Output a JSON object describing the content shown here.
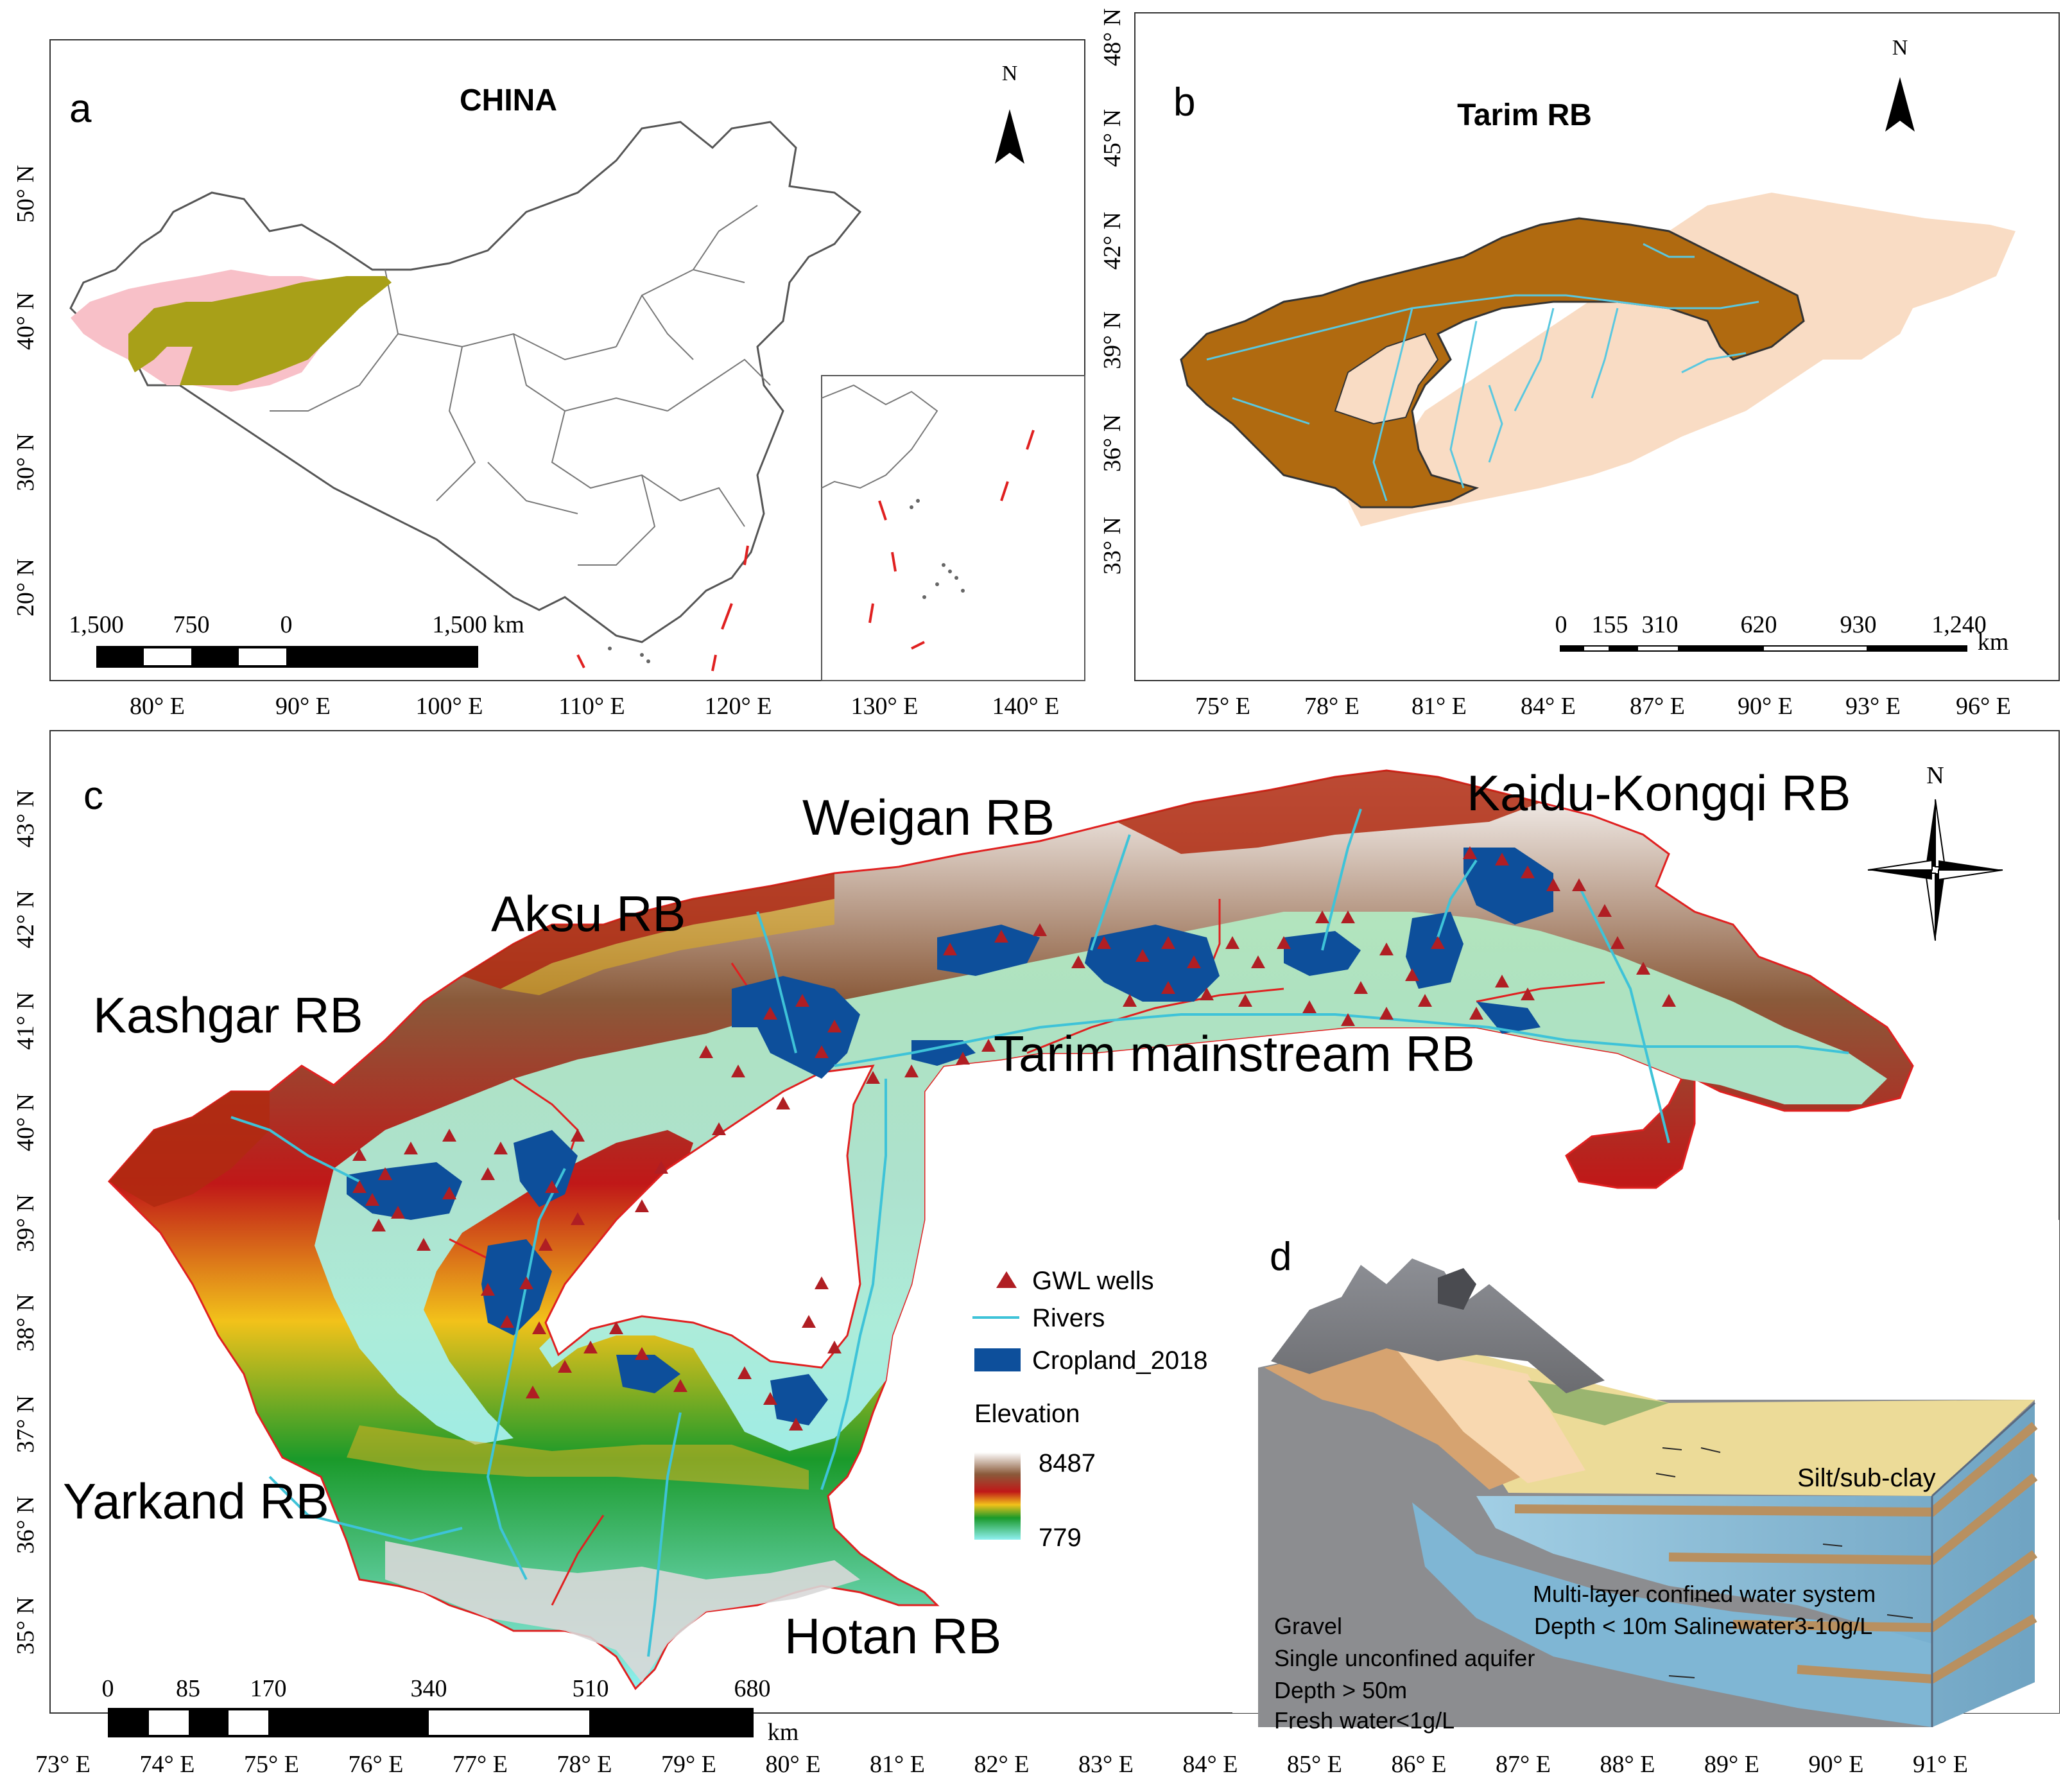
{
  "panel_a": {
    "letter": "a",
    "title": "CHINA",
    "north": "N",
    "lat_labels": [
      "50° N",
      "40° N",
      "30° N",
      "20° N"
    ],
    "lon_labels": [
      "80° E",
      "90° E",
      "100° E",
      "110° E",
      "120° E",
      "130° E",
      "140° E"
    ],
    "scale_labels": [
      "1,500",
      "750",
      "0",
      "1,500 km"
    ]
  },
  "panel_b": {
    "letter": "b",
    "title": "Tarim RB",
    "north": "N",
    "lat_labels": [
      "48° N",
      "45° N",
      "42° N",
      "39° N",
      "36° N",
      "33° N"
    ],
    "lon_labels": [
      "75° E",
      "78° E",
      "81° E",
      "84° E",
      "87° E",
      "90° E",
      "93° E",
      "96° E"
    ],
    "scale_labels": [
      "0",
      "155",
      "310",
      "620",
      "930",
      "1,240",
      "km"
    ]
  },
  "panel_c": {
    "letter": "c",
    "north": "N",
    "basins": [
      "Weigan RB",
      "Kaidu-Kongqi RB",
      "Aksu RB",
      "Kashgar RB",
      "Tarim mainstream RB",
      "Yarkand RB",
      "Hotan RB"
    ],
    "lat_labels": [
      "43° N",
      "42° N",
      "41° N",
      "40° N",
      "39° N",
      "38° N",
      "37° N",
      "36° N",
      "35° N"
    ],
    "lon_labels": [
      "73° E",
      "74° E",
      "75° E",
      "76° E",
      "77° E",
      "78° E",
      "79° E",
      "80° E",
      "81° E",
      "82° E",
      "83° E",
      "84° E",
      "85° E",
      "86° E",
      "87° E",
      "88° E",
      "89° E",
      "90° E",
      "91° E"
    ],
    "scale_labels": [
      "0",
      "85",
      "170",
      "340",
      "510",
      "680",
      "km"
    ],
    "legend": {
      "wells": "GWL wells",
      "rivers": "Rivers",
      "cropland": "Cropland_2018",
      "elevation": "Elevation",
      "elev_max": "8487",
      "elev_min": "779"
    },
    "colors": {
      "well": "#b01e23",
      "river": "#3ec3d8",
      "cropland": "#0d4f9b",
      "boundary": "#e02020"
    }
  },
  "panel_d": {
    "letter": "d",
    "labels": {
      "silt": "Silt/sub-clay",
      "confined_1": "Multi-layer confined water system",
      "confined_2": "Depth < 10m Salinewater3-10g/L",
      "gravel_1": "Gravel",
      "gravel_2": "Single unconfined aquifer",
      "gravel_3": "Depth > 50m",
      "gravel_4": "Fresh water<1g/L"
    }
  }
}
